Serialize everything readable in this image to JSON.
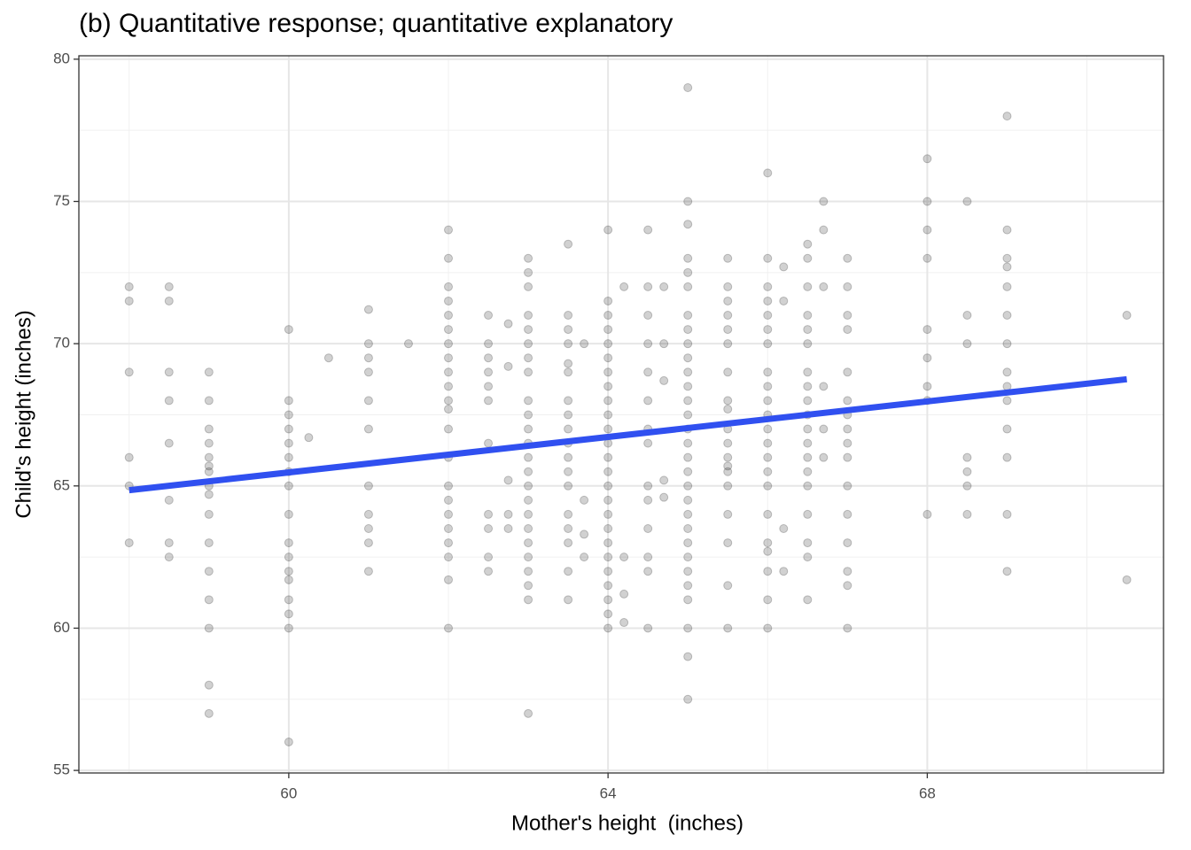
{
  "chart_data": {
    "type": "scatter",
    "title": "(b) Quantitative response; quantitative explanatory",
    "x_label": "Mother's height  (inches)",
    "y_label": "Child's height (inches)",
    "xlim": [
      57.37,
      70.96
    ],
    "ylim": [
      54.91,
      80.12
    ],
    "xticks": [
      60,
      64,
      68
    ],
    "yticks": [
      55,
      60,
      65,
      70,
      75,
      80
    ],
    "x_minor_grid": [
      58,
      62,
      66,
      70
    ],
    "y_minor_grid": [
      57.5,
      62.5,
      67.5,
      72.5,
      77.5
    ],
    "grid": true,
    "point_color": "#000000",
    "point_opacity": 0.18,
    "x": [
      58,
      58,
      58,
      58,
      58,
      58,
      58.5,
      58.5,
      58.5,
      58.5,
      58.5,
      58.5,
      58.5,
      58.5,
      59,
      59,
      59,
      59,
      59,
      59,
      59,
      59,
      59,
      59,
      59,
      59,
      59,
      59,
      59,
      59,
      60,
      60,
      60,
      60,
      60,
      60,
      60,
      60,
      60,
      60,
      60,
      60,
      60,
      60,
      60,
      60,
      60,
      60.25,
      60.5,
      61,
      61,
      61,
      61,
      61,
      61,
      61,
      61,
      61,
      61,
      61,
      61.5,
      62,
      62,
      62,
      62,
      62,
      62,
      62,
      62,
      62,
      62,
      62,
      62,
      62,
      62,
      62,
      62,
      62,
      62,
      62,
      62,
      62,
      62,
      62.5,
      62.5,
      62.5,
      62.5,
      62.5,
      62.5,
      62.5,
      62.5,
      62.5,
      62.5,
      62.5,
      62.75,
      62.75,
      62.75,
      62.75,
      62.75,
      63,
      63,
      63,
      63,
      63,
      63,
      63,
      63,
      63,
      63,
      63,
      63,
      63,
      63,
      63,
      63,
      63,
      63,
      63,
      63,
      63,
      63,
      63,
      63,
      63.5,
      63.5,
      63.5,
      63.5,
      63.5,
      63.5,
      63.5,
      63.5,
      63.5,
      63.5,
      63.5,
      63.5,
      63.5,
      63.5,
      63.5,
      63.5,
      63.5,
      63.5,
      63.7,
      63.7,
      63.7,
      63.7,
      64,
      64,
      64,
      64,
      64,
      64,
      64,
      64,
      64,
      64,
      64,
      64,
      64,
      64,
      64,
      64,
      64,
      64,
      64,
      64,
      64,
      64,
      64,
      64,
      64,
      64.2,
      64.2,
      64.2,
      64.2,
      64.5,
      64.5,
      64.5,
      64.5,
      64.5,
      64.5,
      64.5,
      64.5,
      64.5,
      64.5,
      64.5,
      64.5,
      64.5,
      64.5,
      64.7,
      64.7,
      64.7,
      64.7,
      64.7,
      65,
      65,
      65,
      65,
      65,
      65,
      65,
      65,
      65,
      65,
      65,
      65,
      65,
      65,
      65,
      65,
      65,
      65,
      65,
      65,
      65,
      65,
      65,
      65,
      65,
      65,
      65,
      65,
      65,
      65,
      65.5,
      65.5,
      65.5,
      65.5,
      65.5,
      65.5,
      65.5,
      65.5,
      65.5,
      65.5,
      65.5,
      65.5,
      65.5,
      65.5,
      65.5,
      65.5,
      65.5,
      65.5,
      65.5,
      66,
      66,
      66,
      66,
      66,
      66,
      66,
      66,
      66,
      66,
      66,
      66,
      66,
      66,
      66,
      66,
      66,
      66,
      66,
      66,
      66,
      66,
      66.2,
      66.2,
      66.2,
      66.2,
      66.5,
      66.5,
      66.5,
      66.5,
      66.5,
      66.5,
      66.5,
      66.5,
      66.5,
      66.5,
      66.5,
      66.5,
      66.5,
      66.5,
      66.5,
      66.5,
      66.5,
      66.5,
      66.5,
      66.7,
      66.7,
      66.7,
      66.7,
      66.7,
      66.7,
      67,
      67,
      67,
      67,
      67,
      67,
      67,
      67,
      67,
      67,
      67,
      67,
      67,
      67,
      67,
      67,
      68,
      68,
      68,
      68,
      68,
      68,
      68,
      68,
      68,
      68.5,
      68.5,
      68.5,
      68.5,
      68.5,
      68.5,
      68.5,
      69,
      69,
      69,
      69,
      69,
      69,
      69,
      69,
      69,
      69,
      69,
      69,
      69,
      69,
      70.5,
      70.5
    ],
    "values": [
      72,
      71.5,
      69,
      66,
      65,
      63,
      72,
      71.5,
      69,
      68,
      66.5,
      64.5,
      63,
      62.5,
      69,
      68,
      67,
      66.5,
      66,
      65.7,
      65.5,
      65,
      64.7,
      64,
      63,
      62,
      61,
      60,
      58,
      57,
      70.5,
      68,
      67.5,
      67,
      66.5,
      66,
      65.5,
      65,
      64,
      63,
      62.5,
      62,
      61.7,
      61,
      60.5,
      60,
      56,
      66.7,
      69.5,
      71.2,
      70,
      69.5,
      69,
      68,
      67,
      65,
      64,
      63.5,
      63,
      62,
      70,
      74,
      73,
      72,
      71.5,
      71,
      70.5,
      70,
      69.5,
      69,
      68.5,
      68,
      67.7,
      67,
      66,
      65,
      64.5,
      64,
      63.5,
      63,
      62.5,
      61.7,
      60,
      71,
      70,
      69.5,
      69,
      68.5,
      68,
      66.5,
      64,
      63.5,
      62.5,
      62,
      70.7,
      69.2,
      65.2,
      64,
      63.5,
      73,
      72.5,
      72,
      71,
      70.5,
      70,
      69.5,
      69,
      68,
      67.5,
      67,
      66.5,
      66,
      65.5,
      65,
      64.5,
      64,
      63.5,
      63,
      62.5,
      62,
      61.5,
      61,
      57,
      73.5,
      71,
      70.5,
      70,
      69.3,
      69,
      68,
      67.5,
      67,
      66.5,
      66,
      65.5,
      65,
      64,
      63.5,
      63,
      62,
      61,
      70,
      64.5,
      63.3,
      62.5,
      74,
      71.5,
      71,
      70.5,
      70,
      69.5,
      69,
      68.5,
      68,
      67.5,
      67,
      66.5,
      66,
      65.5,
      65,
      64.5,
      64,
      63.5,
      63,
      62.5,
      62,
      61.5,
      61,
      60.5,
      60,
      72,
      62.5,
      61.2,
      60.2,
      74,
      72,
      71,
      70,
      69,
      68,
      67,
      66.5,
      65,
      64.5,
      63.5,
      62.5,
      62,
      60,
      72,
      70,
      68.7,
      65.2,
      64.6,
      79,
      75,
      74.2,
      73,
      72.5,
      72,
      71,
      70.5,
      70,
      69.5,
      69,
      68.5,
      68,
      67.5,
      67,
      66.5,
      66,
      65.5,
      65,
      64.5,
      64,
      63.5,
      63,
      62.5,
      62,
      61.5,
      61,
      60,
      59,
      57.5,
      73,
      72,
      71.5,
      71,
      70.5,
      70,
      69,
      68,
      67.7,
      67,
      66.5,
      66,
      65.7,
      65.5,
      65,
      64,
      63,
      61.5,
      60,
      76,
      73,
      72,
      71.5,
      71,
      70.5,
      70,
      69,
      68.5,
      68,
      67.5,
      67,
      66.5,
      66,
      65.5,
      65,
      64,
      63,
      62.7,
      62,
      61,
      60,
      72.7,
      71.5,
      63.5,
      62,
      73.5,
      73,
      72,
      71,
      70.5,
      70,
      69,
      68.5,
      68,
      67.5,
      67,
      66.5,
      66,
      65.5,
      65,
      64,
      63,
      62.5,
      61,
      75,
      74,
      72,
      68.5,
      67,
      66,
      73,
      72,
      71,
      70.5,
      69,
      68,
      67.5,
      67,
      66.5,
      66,
      65,
      64,
      63,
      62,
      61.5,
      60,
      76.5,
      75,
      74,
      73,
      70.5,
      69.5,
      68.5,
      68,
      64,
      75,
      71,
      70,
      66,
      65.5,
      65,
      64,
      78,
      74,
      73,
      72.7,
      72,
      71,
      70,
      69,
      68.5,
      68,
      67,
      66,
      64,
      62,
      71,
      61.7
    ],
    "fit": {
      "color": "#3050f0",
      "x": [
        58,
        70.5
      ],
      "values": [
        64.85,
        68.75
      ]
    }
  }
}
